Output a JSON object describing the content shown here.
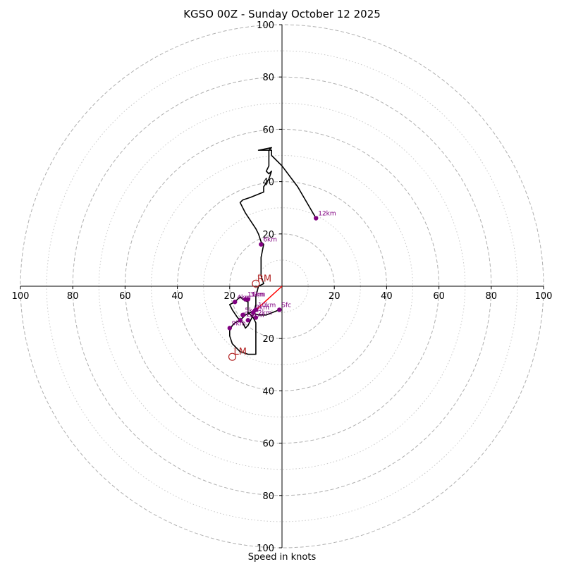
{
  "chart_data": {
    "type": "hodograph",
    "title": "KGSO 00Z - Sunday October 12 2025",
    "xlabel": "Speed in knots",
    "range": 100,
    "rings_major": [
      20,
      40,
      60,
      80,
      100
    ],
    "rings_minor": [
      10,
      30,
      50,
      70,
      90
    ],
    "x_ticks": [
      {
        "v": -100,
        "label": "100"
      },
      {
        "v": -80,
        "label": "80"
      },
      {
        "v": -60,
        "label": "60"
      },
      {
        "v": -40,
        "label": "40"
      },
      {
        "v": -20,
        "label": "20"
      },
      {
        "v": 20,
        "label": "20"
      },
      {
        "v": 40,
        "label": "40"
      },
      {
        "v": 60,
        "label": "60"
      },
      {
        "v": 80,
        "label": "80"
      },
      {
        "v": 100,
        "label": "100"
      }
    ],
    "y_ticks": [
      {
        "v": 100,
        "label": "100"
      },
      {
        "v": 80,
        "label": "80"
      },
      {
        "v": 60,
        "label": "60"
      },
      {
        "v": 40,
        "label": "40"
      },
      {
        "v": 20,
        "label": "20"
      },
      {
        "v": -20,
        "label": "20"
      },
      {
        "v": -40,
        "label": "40"
      },
      {
        "v": -60,
        "label": "60"
      },
      {
        "v": -80,
        "label": "80"
      },
      {
        "v": -100,
        "label": "100"
      }
    ],
    "trace": [
      [
        -1,
        -9
      ],
      [
        -6,
        -11
      ],
      [
        -9,
        -11
      ],
      [
        -12,
        -10
      ],
      [
        -14,
        -11
      ],
      [
        -15,
        -12
      ],
      [
        -16,
        -13
      ],
      [
        -18,
        -14
      ],
      [
        -19,
        -15
      ],
      [
        -20,
        -17
      ],
      [
        -20,
        -19
      ],
      [
        -19,
        -22
      ],
      [
        -16,
        -25
      ],
      [
        -13,
        -26
      ],
      [
        -10,
        -26
      ],
      [
        -10,
        -24
      ],
      [
        -10,
        -20
      ],
      [
        -10,
        -17
      ],
      [
        -10,
        -14
      ],
      [
        -11,
        -12
      ],
      [
        -13,
        -10
      ],
      [
        -13,
        -8
      ],
      [
        -13,
        -6
      ],
      [
        -15,
        -5
      ],
      [
        -16,
        -4
      ],
      [
        -18,
        -6
      ],
      [
        -20,
        -7
      ],
      [
        -19,
        -9
      ],
      [
        -17,
        -12
      ],
      [
        -15,
        -14
      ],
      [
        -14,
        -16
      ],
      [
        -13,
        -15
      ],
      [
        -12,
        -13
      ],
      [
        -11,
        -11
      ],
      [
        -10,
        -7
      ],
      [
        -10,
        -4
      ],
      [
        -9,
        0
      ],
      [
        -7,
        1
      ],
      [
        -8,
        4
      ],
      [
        -8,
        11
      ],
      [
        -7,
        16
      ],
      [
        -8,
        17
      ],
      [
        -9,
        20
      ],
      [
        -10,
        22
      ],
      [
        -14,
        28
      ],
      [
        -16,
        32
      ],
      [
        -15,
        33
      ],
      [
        -12,
        34
      ],
      [
        -7,
        36
      ],
      [
        -7,
        38
      ],
      [
        -5,
        41
      ],
      [
        -4,
        44
      ],
      [
        -5,
        43
      ],
      [
        -6,
        44
      ],
      [
        -5,
        46
      ],
      [
        -5,
        52
      ],
      [
        -4,
        53
      ],
      [
        -9,
        52
      ],
      [
        -4,
        52
      ],
      [
        -4,
        50
      ],
      [
        0,
        46
      ],
      [
        6,
        38
      ],
      [
        13,
        26
      ]
    ],
    "height_labels": [
      {
        "label": "Sfc",
        "u": -1,
        "v": -9
      },
      {
        "label": "1km",
        "u": -13,
        "v": -13
      },
      {
        "label": "2km",
        "u": -10,
        "v": -12
      },
      {
        "label": "3km",
        "u": -13,
        "v": -5
      },
      {
        "label": "4km",
        "u": -18,
        "v": -6
      },
      {
        "label": "5km",
        "u": -15,
        "v": -11
      },
      {
        "label": "6km",
        "u": -8,
        "v": 16
      },
      {
        "label": "7km",
        "u": -16,
        "v": -13
      },
      {
        "label": "8km",
        "u": -11,
        "v": -10
      },
      {
        "label": "9km",
        "u": -20,
        "v": -16
      },
      {
        "label": "10km",
        "u": -10,
        "v": -9
      },
      {
        "label": "11km",
        "u": -14,
        "v": -5
      },
      {
        "label": "12km",
        "u": 13,
        "v": 26
      }
    ],
    "storm_motions": [
      {
        "label": "RM",
        "u": -10,
        "v": 1
      },
      {
        "label": "LM",
        "u": -19,
        "v": -27
      }
    ],
    "mean_wind_vector": {
      "u": 0,
      "v": 0,
      "u2": -11,
      "v2": -10
    },
    "colors": {
      "trace": "#000000",
      "height_markers": "#800080",
      "storm_motion": "#b22222",
      "vector": "#ff0000",
      "grid": "#b0b0b0"
    }
  }
}
